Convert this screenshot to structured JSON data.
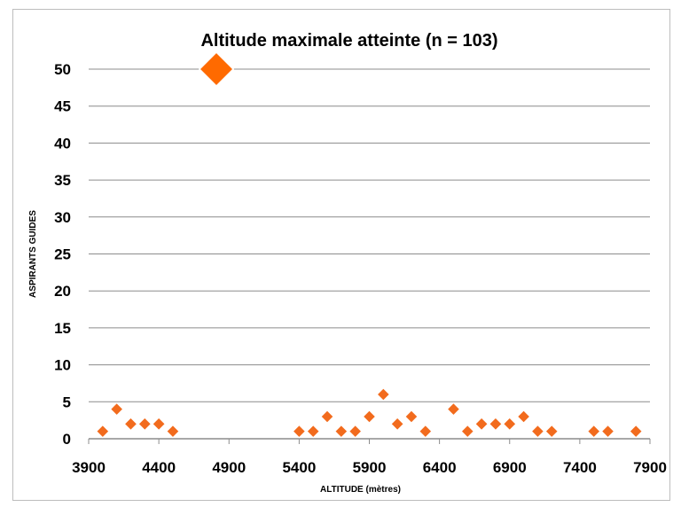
{
  "chart_data": {
    "type": "scatter",
    "title": "Altitude maximale atteinte (n = 103)",
    "xlabel": "ALTITUDE (mètres)",
    "ylabel": "ASPIRANTS GUIDES",
    "xlim": [
      3900,
      7900
    ],
    "ylim": [
      0,
      50
    ],
    "x_ticks": [
      "3900",
      "4400",
      "4900",
      "5400",
      "5900",
      "6400",
      "6900",
      "7400",
      "7900"
    ],
    "y_ticks": [
      "0",
      "5",
      "10",
      "15",
      "20",
      "25",
      "30",
      "35",
      "40",
      "45",
      "50"
    ],
    "grid": "horizontal",
    "marker": "diamond",
    "marker_color": "#f26b1d",
    "highlight_color": "#ff6a00",
    "points": [
      {
        "x": 4000,
        "y": 1
      },
      {
        "x": 4100,
        "y": 4
      },
      {
        "x": 4200,
        "y": 2
      },
      {
        "x": 4300,
        "y": 2
      },
      {
        "x": 4400,
        "y": 2
      },
      {
        "x": 4500,
        "y": 1
      },
      {
        "x": 4810,
        "y": 50,
        "highlight": true
      },
      {
        "x": 5400,
        "y": 1
      },
      {
        "x": 5500,
        "y": 1
      },
      {
        "x": 5600,
        "y": 3
      },
      {
        "x": 5700,
        "y": 1
      },
      {
        "x": 5800,
        "y": 1
      },
      {
        "x": 5900,
        "y": 3
      },
      {
        "x": 6000,
        "y": 6
      },
      {
        "x": 6100,
        "y": 2
      },
      {
        "x": 6200,
        "y": 3
      },
      {
        "x": 6300,
        "y": 1
      },
      {
        "x": 6500,
        "y": 4
      },
      {
        "x": 6600,
        "y": 1
      },
      {
        "x": 6700,
        "y": 2
      },
      {
        "x": 6800,
        "y": 2
      },
      {
        "x": 6900,
        "y": 2
      },
      {
        "x": 7000,
        "y": 3
      },
      {
        "x": 7100,
        "y": 1
      },
      {
        "x": 7200,
        "y": 1
      },
      {
        "x": 7500,
        "y": 1
      },
      {
        "x": 7600,
        "y": 1
      },
      {
        "x": 7800,
        "y": 1
      }
    ]
  }
}
